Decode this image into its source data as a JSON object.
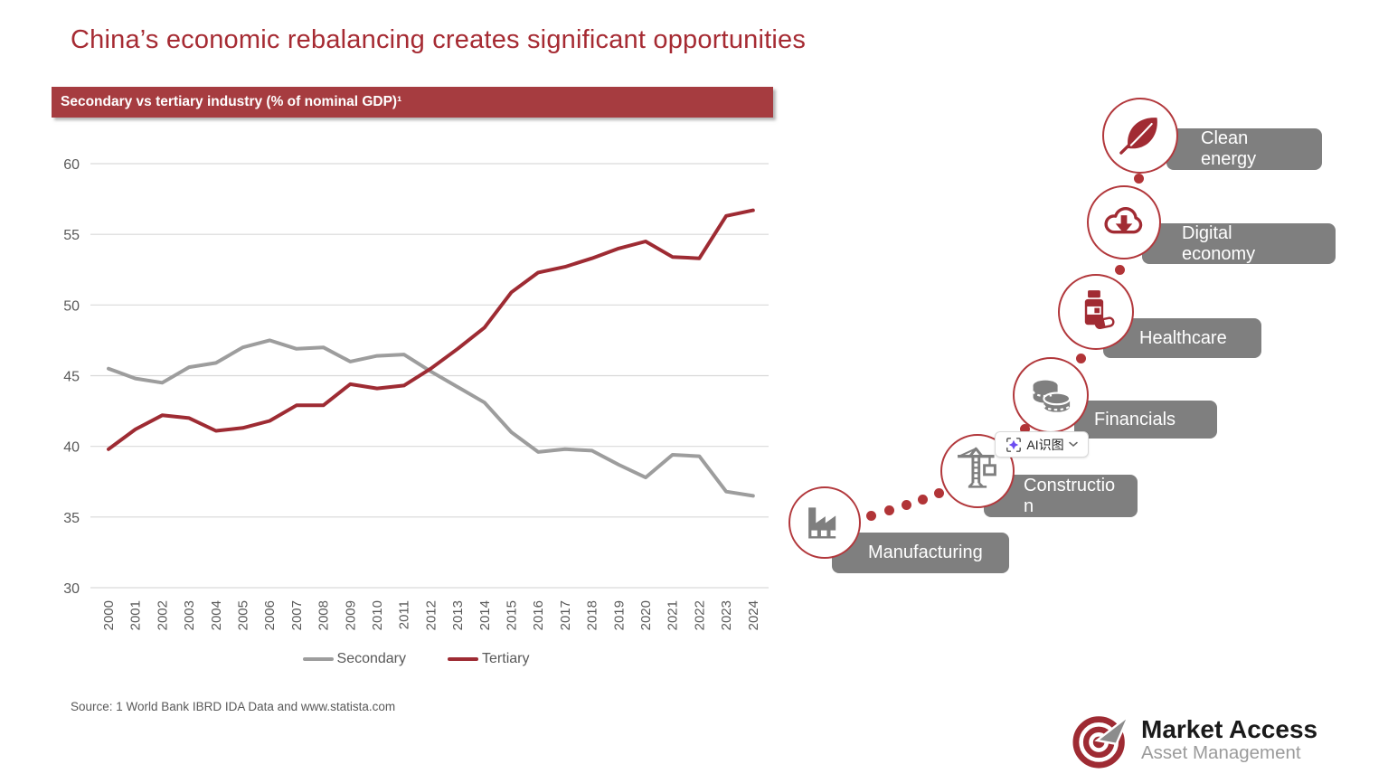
{
  "page": {
    "title": "China’s economic rebalancing creates significant opportunities"
  },
  "banner": {
    "label": "Secondary vs tertiary industry (% of nominal GDP)¹"
  },
  "chart_data": {
    "type": "line",
    "title": "Secondary vs tertiary industry (% of nominal GDP)",
    "categories": [
      "2000",
      "2001",
      "2002",
      "2003",
      "2004",
      "2005",
      "2006",
      "2007",
      "2008",
      "2009",
      "2010",
      "2011",
      "2012",
      "2013",
      "2014",
      "2015",
      "2016",
      "2017",
      "2018",
      "2019",
      "2020",
      "2021",
      "2022",
      "2023",
      "2024"
    ],
    "series": [
      {
        "name": "Secondary",
        "color": "#9D9D9D",
        "values": [
          45.5,
          44.8,
          44.5,
          45.6,
          45.9,
          47.0,
          47.5,
          46.9,
          47.0,
          46.0,
          46.4,
          46.5,
          45.3,
          44.2,
          43.1,
          41.0,
          39.6,
          39.8,
          39.7,
          38.7,
          37.8,
          39.4,
          39.3,
          36.8,
          36.5
        ]
      },
      {
        "name": "Tertiary",
        "color": "#9E2B33",
        "values": [
          39.8,
          41.2,
          42.2,
          42.0,
          41.1,
          41.3,
          41.8,
          42.9,
          42.9,
          44.4,
          44.1,
          44.3,
          45.5,
          46.9,
          48.4,
          50.9,
          52.3,
          52.7,
          53.3,
          54.0,
          54.5,
          53.4,
          53.3,
          56.3,
          56.7
        ]
      }
    ],
    "ylim": [
      30,
      60
    ],
    "ytick_step": 5,
    "grid": "horizontal",
    "legend_position": "bottom",
    "x_label_rotation": -90
  },
  "source": {
    "text": "Source: 1 World Bank IBRD IDA Data and www.statista.com"
  },
  "sectors": [
    {
      "id": "clean-energy",
      "label": "Clean energy",
      "icon": "leaf-icon"
    },
    {
      "id": "digital-economy",
      "label": "Digital economy",
      "icon": "cloud-download-icon"
    },
    {
      "id": "healthcare",
      "label": "Healthcare",
      "icon": "medicine-bottle-icon"
    },
    {
      "id": "financials",
      "label": "Financials",
      "icon": "coins-icon"
    },
    {
      "id": "construction",
      "label": "Construction",
      "icon": "crane-icon"
    },
    {
      "id": "manufacturing",
      "label": "Manufacturing",
      "icon": "factory-icon"
    }
  ],
  "ai_overlay": {
    "label": "AI识图"
  },
  "logo": {
    "brand": "Market Access",
    "subtitle": "Asset Management"
  },
  "colors": {
    "title_red": "#A62B33",
    "banner_red": "#A63C40",
    "line_red": "#9E2B33",
    "line_gray": "#9D9D9D",
    "label_box_gray": "#7F7F7F",
    "axis_text": "#595959",
    "circle_border_red": "#B2383C",
    "dot_red": "#B13437",
    "sparkle_purple": "#6C4CF1"
  }
}
